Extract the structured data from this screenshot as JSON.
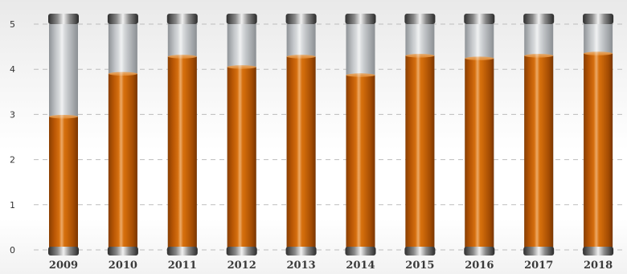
{
  "chart_data": {
    "type": "bar",
    "title": "",
    "xlabel": "",
    "ylabel": "",
    "categories": [
      "2009",
      "2010",
      "2011",
      "2012",
      "2013",
      "2014",
      "2015",
      "2016",
      "2017",
      "2018"
    ],
    "values": [
      2.95,
      3.9,
      4.28,
      4.05,
      4.28,
      3.87,
      4.3,
      4.24,
      4.3,
      4.35
    ],
    "ylim": [
      0,
      5
    ],
    "yticks": [
      "0",
      "1",
      "2",
      "3",
      "4",
      "5"
    ],
    "grid": true,
    "legend": "none",
    "colors": {
      "fill": "#c35f06",
      "fill_dark": "#8a3f02",
      "fill_light": "#e27a14",
      "tube_empty": "#b8bcc0",
      "cap": "#6e6e6e"
    }
  }
}
